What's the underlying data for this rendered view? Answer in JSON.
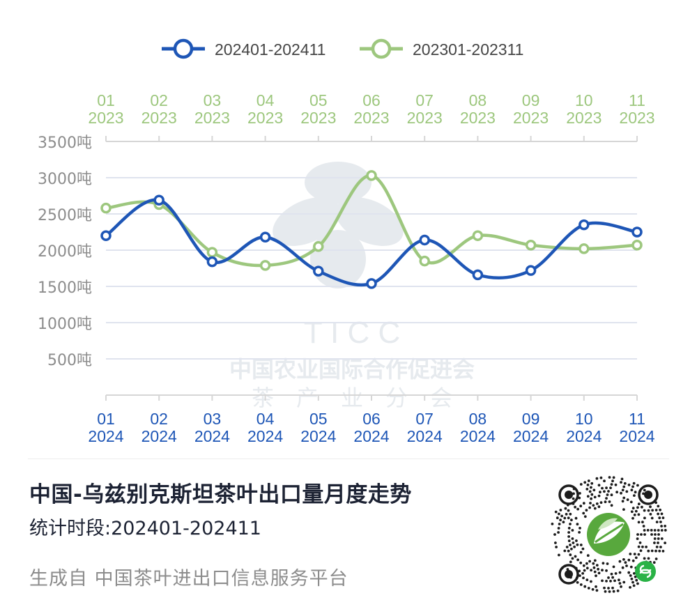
{
  "chart_data": {
    "type": "line",
    "title": "中国-乌兹别克斯坦茶叶出口量月度走势",
    "subtitle": "统计时段:202401-202411",
    "ylim": [
      0,
      3500
    ],
    "y_ticks": [
      "500吨",
      "1000吨",
      "1500吨",
      "2000吨",
      "2500吨",
      "3000吨",
      "3500吨"
    ],
    "y_tick_values": [
      500,
      1000,
      1500,
      2000,
      2500,
      3000,
      3500
    ],
    "x_bottom_months": [
      "01",
      "02",
      "03",
      "04",
      "05",
      "06",
      "07",
      "08",
      "09",
      "10",
      "11"
    ],
    "x_bottom_year": "2024",
    "x_top_months": [
      "01",
      "02",
      "03",
      "04",
      "05",
      "06",
      "07",
      "08",
      "09",
      "10",
      "11"
    ],
    "x_top_year": "2023",
    "grid": true,
    "legend_position": "top-center",
    "series": [
      {
        "name": "202401-202411",
        "color": "#1e56b6",
        "axis": "bottom",
        "values": [
          2200,
          2690,
          1840,
          2180,
          1710,
          1540,
          2140,
          1660,
          1720,
          2350,
          2250
        ]
      },
      {
        "name": "202301-202311",
        "color": "#9dc77e",
        "axis": "top",
        "values": [
          2580,
          2630,
          1970,
          1790,
          2050,
          3030,
          1850,
          2200,
          2070,
          2020,
          2070
        ]
      }
    ]
  },
  "watermark": {
    "line1": "T I C C",
    "line2": "中国农业国际合作促进会",
    "line3": "茶　产　业　分　会",
    "color": "#e6eaee"
  },
  "footer": {
    "title": "中国-乌兹别克斯坦茶叶出口量月度走势",
    "subtitle": "统计时段:202401-202411",
    "source": "生成自 中国茶叶进出口信息服务平台",
    "qr_icon": "mini-program-qr-code-icon"
  },
  "colors": {
    "grid": "#dfe3ee",
    "axis": "#d6d6d6",
    "ytick_text": "#8c8c8c",
    "bottom_axis_text": "#1e56b6",
    "top_axis_text": "#9dc77e"
  }
}
